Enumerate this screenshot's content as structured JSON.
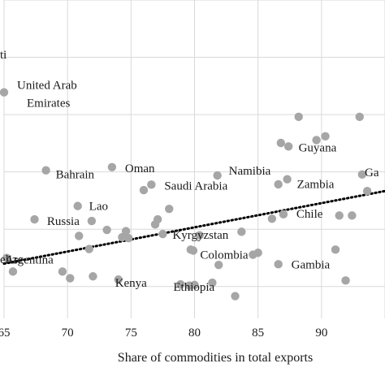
{
  "chart_data": {
    "type": "scatter",
    "xlabel": "Share of commodities in total exports",
    "ylabel": "",
    "xlim": [
      65,
      95
    ],
    "ylim": [
      0,
      100
    ],
    "x_ticks": [
      65,
      70,
      75,
      80,
      85,
      90
    ],
    "x_tick_labels": [
      "65",
      "70",
      "75",
      "80",
      "85",
      "90"
    ],
    "grid": "vertical and horizontal",
    "point_color": "#a6a6a6",
    "trend_color": "#000000",
    "trendline": {
      "style": "dotted",
      "x": [
        65,
        95
      ],
      "y": [
        17.2,
        40.0
      ]
    },
    "labeled_points": [
      {
        "label": "United Arab Emirates",
        "x": 65.0,
        "y": 71.0
      },
      {
        "label": "Bahrain",
        "x": 68.3,
        "y": 46.5
      },
      {
        "label": "Oman",
        "x": 73.5,
        "y": 47.5
      },
      {
        "label": "Lao",
        "x": 70.8,
        "y": 35.3
      },
      {
        "label": "Saudi Arabia",
        "x": 76.6,
        "y": 42.0
      },
      {
        "label": "Russia",
        "x": 71.9,
        "y": 30.6
      },
      {
        "label": "Argentina",
        "x": 65.2,
        "y": 19.0
      },
      {
        "label": "Kenya",
        "x": 74.0,
        "y": 12.2
      },
      {
        "label": "Namibia",
        "x": 81.8,
        "y": 44.9
      },
      {
        "label": "Kyrgyzstan",
        "x": 77.5,
        "y": 26.5
      },
      {
        "label": "Colombia",
        "x": 84.6,
        "y": 20.0
      },
      {
        "label": "Ethiopia",
        "x": 81.4,
        "y": 11.2
      },
      {
        "label": "Guyana",
        "x": 89.6,
        "y": 56.0
      },
      {
        "label": "Zambia",
        "x": 87.3,
        "y": 43.7
      },
      {
        "label": "Chile",
        "x": 87.0,
        "y": 32.7
      },
      {
        "label": "Gambia",
        "x": 86.6,
        "y": 17.0
      }
    ],
    "truncated_labels": [
      {
        "text": "ti"
      },
      {
        "text": "Ga"
      },
      {
        "text": "elize"
      }
    ],
    "unlabeled_points": [
      {
        "x": 88.2,
        "y": 63.3
      },
      {
        "x": 93.0,
        "y": 63.3
      },
      {
        "x": 90.3,
        "y": 57.2
      },
      {
        "x": 86.8,
        "y": 55.1
      },
      {
        "x": 87.4,
        "y": 54.0
      },
      {
        "x": 93.2,
        "y": 45.2
      },
      {
        "x": 86.6,
        "y": 42.1
      },
      {
        "x": 76.0,
        "y": 40.3
      },
      {
        "x": 93.6,
        "y": 40.0
      },
      {
        "x": 78.0,
        "y": 34.4
      },
      {
        "x": 67.4,
        "y": 31.1
      },
      {
        "x": 77.1,
        "y": 31.1
      },
      {
        "x": 86.1,
        "y": 31.3
      },
      {
        "x": 91.4,
        "y": 32.3
      },
      {
        "x": 92.4,
        "y": 32.3
      },
      {
        "x": 76.9,
        "y": 29.5
      },
      {
        "x": 73.1,
        "y": 27.8
      },
      {
        "x": 74.6,
        "y": 27.4
      },
      {
        "x": 74.3,
        "y": 25.5
      },
      {
        "x": 74.8,
        "y": 25.2
      },
      {
        "x": 70.9,
        "y": 25.9
      },
      {
        "x": 80.4,
        "y": 26.1
      },
      {
        "x": 83.7,
        "y": 27.2
      },
      {
        "x": 71.7,
        "y": 21.8
      },
      {
        "x": 79.7,
        "y": 21.6
      },
      {
        "x": 79.9,
        "y": 21.3
      },
      {
        "x": 85.0,
        "y": 20.6
      },
      {
        "x": 91.1,
        "y": 21.6
      },
      {
        "x": 69.6,
        "y": 14.7
      },
      {
        "x": 70.2,
        "y": 12.6
      },
      {
        "x": 72.0,
        "y": 13.2
      },
      {
        "x": 65.7,
        "y": 14.7
      },
      {
        "x": 78.9,
        "y": 10.7
      },
      {
        "x": 79.6,
        "y": 10.3
      },
      {
        "x": 80.0,
        "y": 10.5
      },
      {
        "x": 83.2,
        "y": 7.0
      },
      {
        "x": 91.9,
        "y": 11.9
      },
      {
        "x": 81.9,
        "y": 16.8
      }
    ]
  }
}
